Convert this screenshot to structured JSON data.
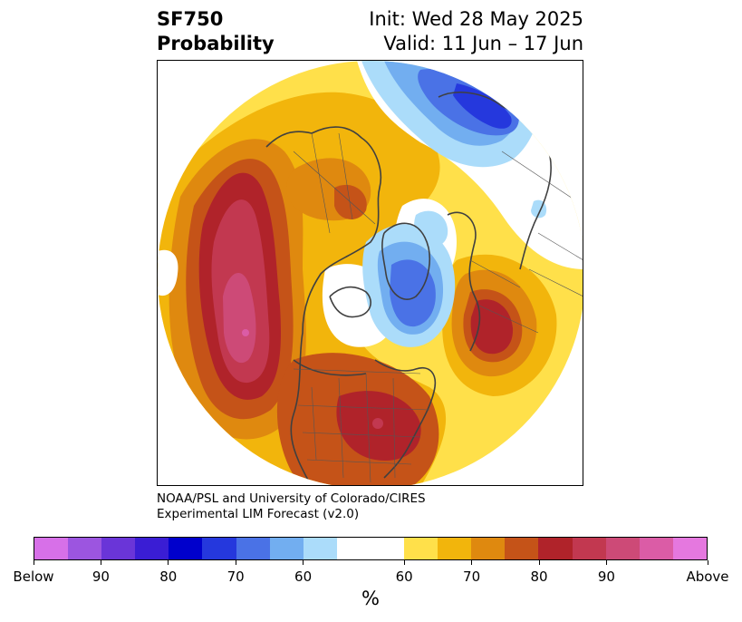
{
  "header": {
    "title_line1": "SF750",
    "title_line2": "Probability",
    "init_text": "Init: Wed 28 May 2025",
    "valid_text": "Valid: 11 Jun – 17 Jun"
  },
  "credit": {
    "line1": "NOAA/PSL and University of Colorado/CIRES",
    "line2": "Experimental LIM Forecast (v2.0)"
  },
  "colorbar": {
    "unit_label": "%",
    "ticks": [
      "Below",
      "90",
      "80",
      "70",
      "60",
      "60",
      "70",
      "80",
      "90",
      "Above"
    ],
    "colors_below": [
      "#d770e8",
      "#9c55e0",
      "#6a35d8",
      "#3a1dd4",
      "#0000cc",
      "#2538dd",
      "#4a72e6",
      "#72aef0",
      "#abdcfa"
    ],
    "color_neutral": "#ffffff",
    "colors_above": [
      "#ffe04a",
      "#f2b50c",
      "#df890f",
      "#c55318",
      "#b0232a",
      "#c23850",
      "#cd4a77",
      "#db5ca6",
      "#e578df"
    ]
  },
  "map": {
    "projection": "north-polar-stereographic",
    "features": [
      "coastlines",
      "country-borders",
      "us-state-borders"
    ],
    "anomaly_centers": [
      {
        "region": "north-pacific",
        "category": "above",
        "level": "90"
      },
      {
        "region": "southeastern-us",
        "category": "above",
        "level": "80"
      },
      {
        "region": "western-europe-north-atlantic",
        "category": "above",
        "level": "80"
      },
      {
        "region": "greenland-arctic",
        "category": "below",
        "level": "70"
      },
      {
        "region": "east-siberia",
        "category": "below",
        "level": "80"
      }
    ]
  }
}
